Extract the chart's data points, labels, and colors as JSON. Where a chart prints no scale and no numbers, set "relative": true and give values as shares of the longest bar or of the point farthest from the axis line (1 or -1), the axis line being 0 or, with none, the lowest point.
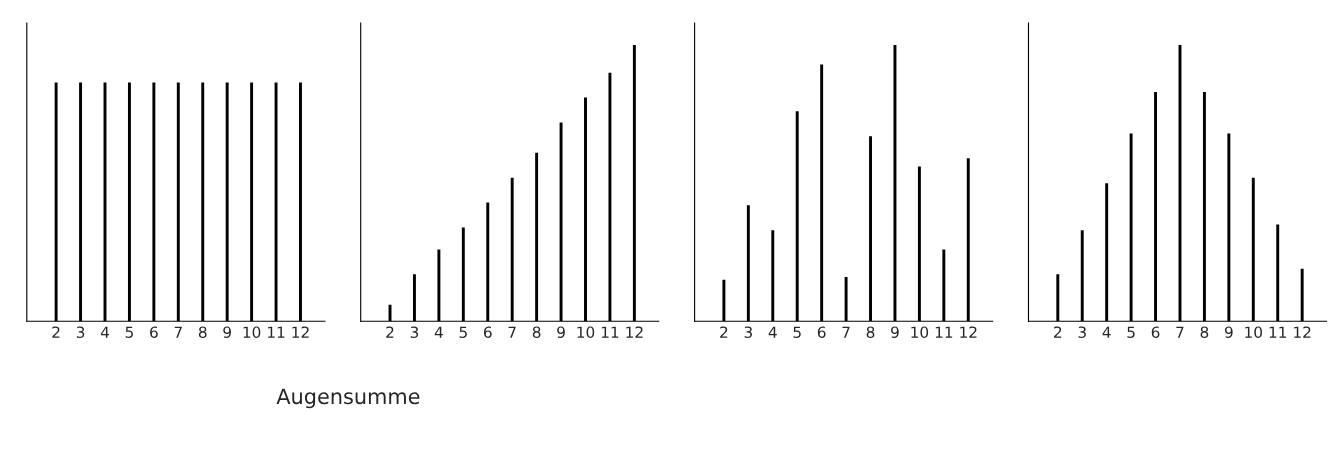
{
  "chart_data": [
    {
      "type": "bar",
      "relative": true,
      "tick_labels": "x",
      "color": "#000000",
      "categories": [
        "2",
        "3",
        "4",
        "5",
        "6",
        "7",
        "8",
        "9",
        "10",
        "11",
        "12"
      ],
      "values": [
        1,
        1,
        1,
        1,
        1,
        1,
        1,
        1,
        1,
        1,
        1
      ],
      "annotations": [
        "Augensumme"
      ]
    },
    {
      "type": "bar",
      "relative": true,
      "tick_labels": "x",
      "color": "#000000",
      "categories": [
        "2",
        "3",
        "4",
        "5",
        "6",
        "7",
        "8",
        "9",
        "10",
        "11",
        "12"
      ],
      "values": [
        0.06,
        0.17,
        0.26,
        0.34,
        0.43,
        0.52,
        0.61,
        0.72,
        0.81,
        0.9,
        1
      ]
    },
    {
      "type": "bar",
      "relative": true,
      "tick_labels": "x",
      "color": "#000000",
      "categories": [
        "2",
        "3",
        "4",
        "5",
        "6",
        "7",
        "8",
        "9",
        "10",
        "11",
        "12"
      ],
      "values": [
        0.15,
        0.42,
        0.33,
        0.76,
        0.93,
        0.16,
        0.67,
        1,
        0.56,
        0.26,
        0.59
      ]
    },
    {
      "type": "bar",
      "relative": true,
      "tick_labels": "x",
      "color": "#000000",
      "categories": [
        "2",
        "3",
        "4",
        "5",
        "6",
        "7",
        "8",
        "9",
        "10",
        "11",
        "12"
      ],
      "values": [
        0.17,
        0.33,
        0.5,
        0.68,
        0.83,
        1,
        0.83,
        0.68,
        0.52,
        0.35,
        0.19
      ]
    }
  ]
}
